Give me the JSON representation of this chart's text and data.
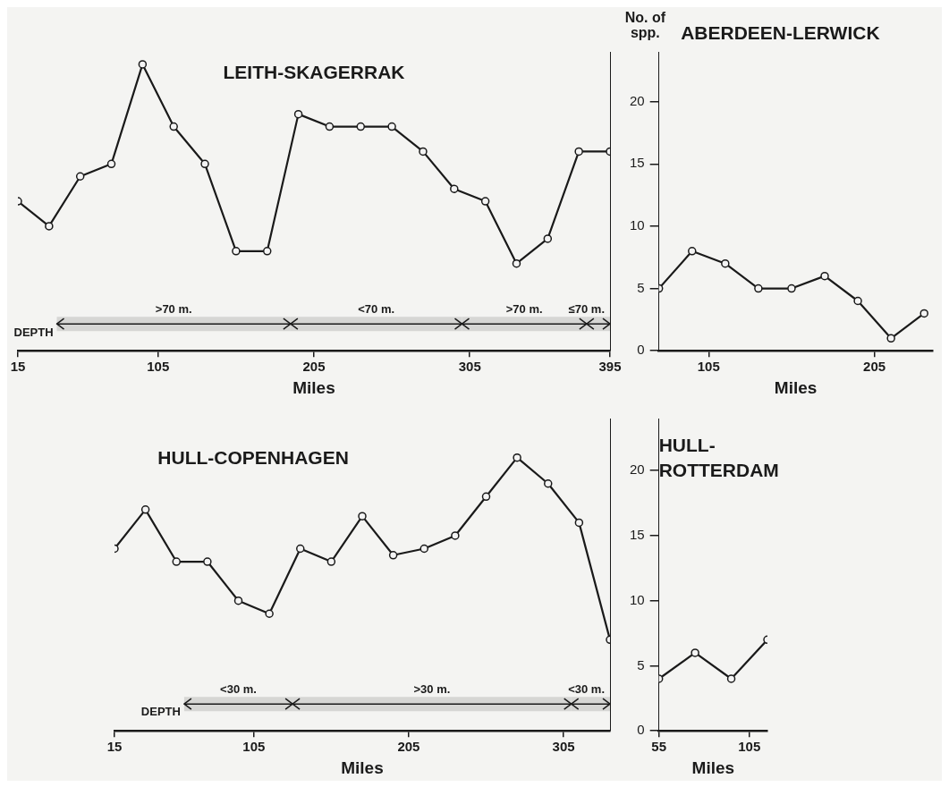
{
  "chart_data": [
    {
      "type": "line",
      "title": "LEITH-SKAGERRAK",
      "xlabel": "Miles",
      "x": [
        15,
        35,
        55,
        75,
        95,
        115,
        135,
        155,
        175,
        195,
        215,
        235,
        255,
        275,
        295,
        315,
        335,
        355,
        375,
        395
      ],
      "series": [
        {
          "color": "#1a1a1a",
          "values": [
            12,
            10,
            14,
            15,
            23,
            18,
            15,
            8,
            8,
            19,
            18,
            18,
            18,
            16,
            13,
            12,
            7,
            9,
            16,
            16
          ]
        }
      ],
      "xlim": [
        15,
        395
      ],
      "xticks": [
        15,
        105,
        205,
        305,
        395
      ],
      "ylim": [
        0,
        24
      ],
      "yticks": [
        0,
        5,
        10,
        15,
        20
      ],
      "tick_labels": "x",
      "marker": "circle",
      "line_style": "solid",
      "bands": [
        {
          "axis": "x",
          "from": 40,
          "to": 190,
          "label": ">70 m."
        },
        {
          "axis": "x",
          "from": 190,
          "to": 300,
          "label": "<70 m."
        },
        {
          "axis": "x",
          "from": 300,
          "to": 380,
          "label": ">70 m."
        },
        {
          "axis": "x",
          "from": 380,
          "to": 395,
          "label": "≤70 m."
        }
      ],
      "annotations": [
        {
          "text": "DEPTH",
          "x": 40,
          "y": 1.5
        }
      ]
    },
    {
      "type": "line",
      "title": "ABERDEEN-LERWICK",
      "xlabel": "Miles",
      "ylabel": "No. of spp.",
      "x": [
        75,
        95,
        115,
        135,
        155,
        175,
        195,
        215,
        235
      ],
      "series": [
        {
          "color": "#1a1a1a",
          "values": [
            5,
            8,
            7,
            5,
            5,
            6,
            4,
            1,
            3
          ]
        }
      ],
      "xlim": [
        75,
        240
      ],
      "xticks": [
        105,
        205
      ],
      "ylim": [
        0,
        24
      ],
      "yticks": [
        0,
        5,
        10,
        15,
        20
      ],
      "marker": "circle",
      "line_style": "solid"
    },
    {
      "type": "line",
      "title": "HULL-COPENHAGEN",
      "xlabel": "Miles",
      "x": [
        15,
        35,
        55,
        75,
        95,
        115,
        135,
        155,
        175,
        195,
        215,
        235,
        255,
        275,
        295,
        315,
        335
      ],
      "series": [
        {
          "color": "#1a1a1a",
          "values": [
            14,
            17,
            13,
            13,
            10,
            9,
            14,
            13,
            16.5,
            13.5,
            14,
            15,
            18,
            21,
            19,
            16,
            7
          ]
        }
      ],
      "xlim": [
        15,
        335
      ],
      "xticks": [
        15,
        105,
        205,
        305
      ],
      "ylim": [
        0,
        24
      ],
      "yticks": [
        0,
        5,
        10,
        15,
        20
      ],
      "tick_labels": "x",
      "marker": "circle",
      "line_style": "solid",
      "bands": [
        {
          "axis": "x",
          "from": 60,
          "to": 130,
          "label": "<30 m."
        },
        {
          "axis": "x",
          "from": 130,
          "to": 310,
          "label": ">30 m."
        },
        {
          "axis": "x",
          "from": 310,
          "to": 335,
          "label": "<30 m."
        }
      ],
      "annotations": [
        {
          "text": "DEPTH",
          "x": 60,
          "y": 1.5
        }
      ]
    },
    {
      "type": "line",
      "title": "HULL-ROTTERDAM",
      "xlabel": "Miles",
      "x": [
        55,
        75,
        95,
        115
      ],
      "series": [
        {
          "color": "#1a1a1a",
          "values": [
            4,
            6,
            4,
            7
          ]
        }
      ],
      "xlim": [
        55,
        115
      ],
      "xticks": [
        55,
        105
      ],
      "ylim": [
        0,
        24
      ],
      "yticks": [
        0,
        5,
        10,
        15,
        20
      ],
      "marker": "circle",
      "line_style": "solid"
    }
  ]
}
